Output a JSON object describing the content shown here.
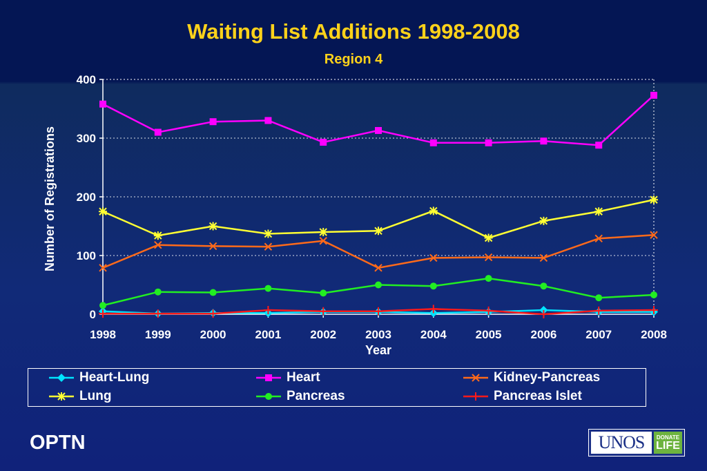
{
  "chart_data": {
    "type": "line",
    "title": "Waiting List Additions 1998-2008",
    "subtitle": "Region 4",
    "xlabel": "Year",
    "ylabel": "Number of Registrations",
    "ylim": [
      0,
      400
    ],
    "yticks": [
      "0",
      "100",
      "200",
      "300",
      "400"
    ],
    "categories": [
      "1998",
      "1999",
      "2000",
      "2001",
      "2002",
      "2003",
      "2004",
      "2005",
      "2006",
      "2007",
      "2008"
    ],
    "grid": "horizontal dotted",
    "legend_position": "bottom",
    "series": [
      {
        "name": "Heart-Lung",
        "color": "#00e5ff",
        "marker": "diamond",
        "values": [
          5,
          1,
          2,
          2,
          4,
          4,
          2,
          4,
          7,
          4,
          4
        ]
      },
      {
        "name": "Heart",
        "color": "#ff00ff",
        "marker": "square",
        "values": [
          358,
          310,
          328,
          330,
          293,
          313,
          292,
          292,
          295,
          288,
          373
        ]
      },
      {
        "name": "Kidney-Pancreas",
        "color": "#ff6a1a",
        "marker": "x",
        "values": [
          79,
          118,
          116,
          115,
          125,
          79,
          96,
          97,
          96,
          129,
          135
        ]
      },
      {
        "name": "Lung",
        "color": "#ffff33",
        "marker": "star",
        "values": [
          175,
          134,
          150,
          137,
          140,
          142,
          176,
          130,
          159,
          175,
          195
        ]
      },
      {
        "name": "Pancreas",
        "color": "#22ee22",
        "marker": "circle",
        "values": [
          15,
          38,
          37,
          44,
          36,
          50,
          48,
          61,
          48,
          28,
          33
        ]
      },
      {
        "name": "Pancreas Islet",
        "color": "#ff1a1a",
        "marker": "plus",
        "values": [
          1,
          1,
          1,
          7,
          5,
          5,
          9,
          6,
          0,
          6,
          7
        ]
      }
    ]
  },
  "footer": {
    "left_text": "OPTN",
    "logo_text": "UNOS",
    "badge_line1": "DONATE",
    "badge_line2": "LIFE"
  }
}
